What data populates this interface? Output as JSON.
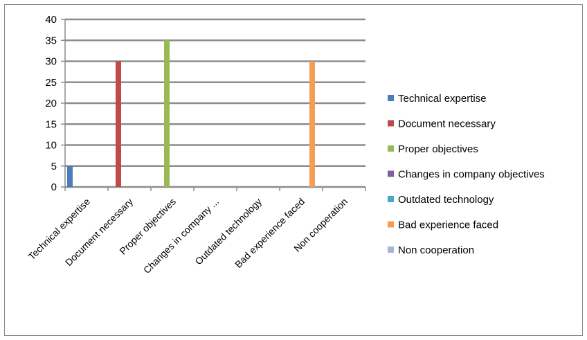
{
  "chart_data": {
    "type": "bar",
    "categories": [
      "Technical expertise",
      "Document necessary",
      "Proper objectives",
      "Changes in company ...",
      "Outdated technology",
      "Bad experience faced",
      "Non cooperation"
    ],
    "series": [
      {
        "name": "Technical expertise",
        "color": "#4a7ebb",
        "values": [
          5,
          0,
          0,
          0,
          0,
          0,
          0
        ]
      },
      {
        "name": "Document necessary",
        "color": "#be4b48",
        "values": [
          0,
          30,
          0,
          0,
          0,
          0,
          0
        ]
      },
      {
        "name": "Proper objectives",
        "color": "#98b954",
        "values": [
          0,
          0,
          35,
          0,
          0,
          0,
          0
        ]
      },
      {
        "name": "Changes in company objectives",
        "color": "#7d60a0",
        "values": [
          0,
          0,
          0,
          0,
          0,
          0,
          0
        ]
      },
      {
        "name": "Outdated technology",
        "color": "#46aac5",
        "values": [
          0,
          0,
          0,
          0,
          0,
          0,
          0
        ]
      },
      {
        "name": "Bad experience faced",
        "color": "#f59d56",
        "values": [
          0,
          0,
          0,
          0,
          0,
          30,
          0
        ]
      },
      {
        "name": "Non cooperation",
        "color": "#a5b6d8",
        "values": [
          0,
          0,
          0,
          0,
          0,
          0,
          0
        ]
      }
    ],
    "ylim": [
      0,
      40
    ],
    "yticks": [
      0,
      5,
      10,
      15,
      20,
      25,
      30,
      35,
      40
    ],
    "title": "",
    "xlabel": "",
    "ylabel": "",
    "grid": true,
    "legend_position": "right"
  }
}
